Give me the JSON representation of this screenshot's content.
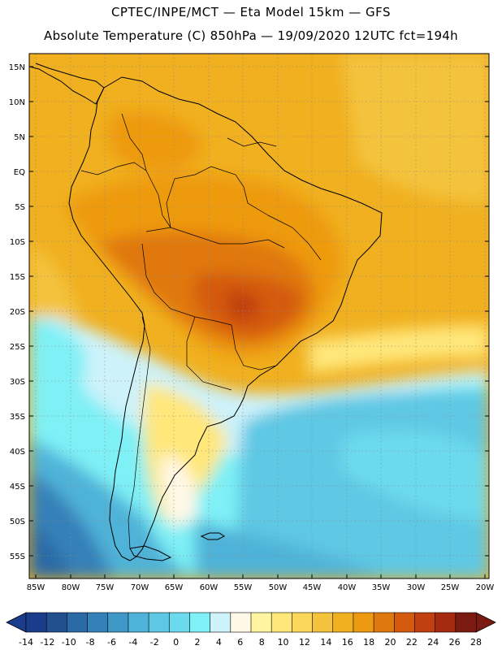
{
  "header": {
    "line1": "CPTEC/INPE/MCT —  Eta Model 15km — GFS",
    "line2": "Absolute Temperature (C) 850hPa — 19/09/2020 12UTC fct=194h"
  },
  "map": {
    "lat_ticks": [
      "15N",
      "10N",
      "5N",
      "EQ",
      "5S",
      "10S",
      "15S",
      "20S",
      "25S",
      "30S",
      "35S",
      "40S",
      "45S",
      "50S",
      "55S"
    ],
    "lon_ticks": [
      "85W",
      "80W",
      "75W",
      "70W",
      "65W",
      "60W",
      "55W",
      "50W",
      "45W",
      "40W",
      "35W",
      "30W",
      "25W",
      "20W"
    ],
    "region": "South America",
    "variable": "Absolute Temperature 850hPa"
  },
  "colorbar": {
    "labels": [
      "-14",
      "-12",
      "-10",
      "-8",
      "-6",
      "-4",
      "-2",
      "0",
      "2",
      "4",
      "6",
      "8",
      "10",
      "12",
      "14",
      "16",
      "18",
      "20",
      "22",
      "24",
      "26",
      "28"
    ],
    "colors": [
      "#1a3c8a",
      "#22508f",
      "#2a6aa6",
      "#3480b8",
      "#3f98c8",
      "#4fb2d8",
      "#5ec8e4",
      "#6cdaee",
      "#7ef0f6",
      "#cdf2fa",
      "#fff8e6",
      "#fff5a0",
      "#ffe77a",
      "#fbd75a",
      "#f4c33e",
      "#f0b020",
      "#ee9a10",
      "#e07810",
      "#d45a10",
      "#c04010",
      "#a42a10",
      "#7a1a10"
    ]
  }
}
